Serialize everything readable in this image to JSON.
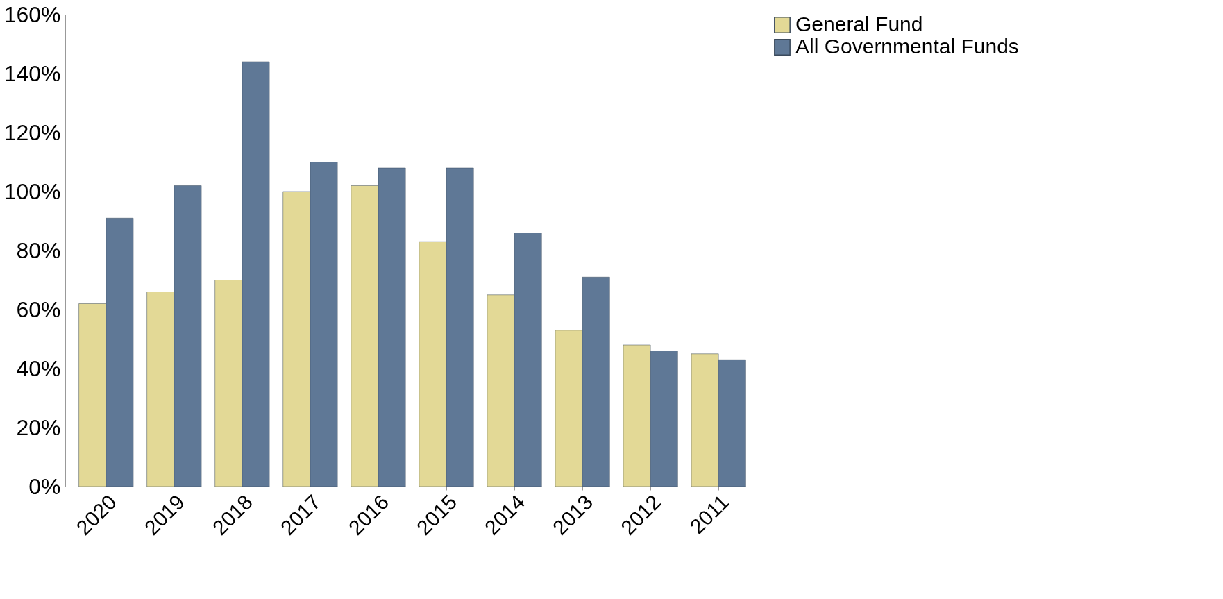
{
  "chart_data": {
    "type": "bar",
    "categories": [
      "2020",
      "2019",
      "2018",
      "2017",
      "2016",
      "2015",
      "2014",
      "2013",
      "2012",
      "2011"
    ],
    "series": [
      {
        "name": "General Fund",
        "color": "#e3d996",
        "values": [
          62,
          66,
          70,
          100,
          102,
          83,
          65,
          53,
          48,
          45
        ]
      },
      {
        "name": "All Governmental Funds",
        "color": "#5f7896",
        "values": [
          91,
          102,
          144,
          110,
          108,
          108,
          86,
          71,
          46,
          43
        ]
      }
    ],
    "ylim": [
      0,
      160
    ],
    "yticks": [
      {
        "value": 0,
        "label": "0%"
      },
      {
        "value": 20,
        "label": "20%"
      },
      {
        "value": 40,
        "label": "40%"
      },
      {
        "value": 60,
        "label": "60%"
      },
      {
        "value": 80,
        "label": "80%"
      },
      {
        "value": 100,
        "label": "100%"
      },
      {
        "value": 120,
        "label": "120%"
      },
      {
        "value": 140,
        "label": "140%"
      },
      {
        "value": 160,
        "label": "160%"
      }
    ],
    "grid": "y",
    "legend": "right"
  }
}
